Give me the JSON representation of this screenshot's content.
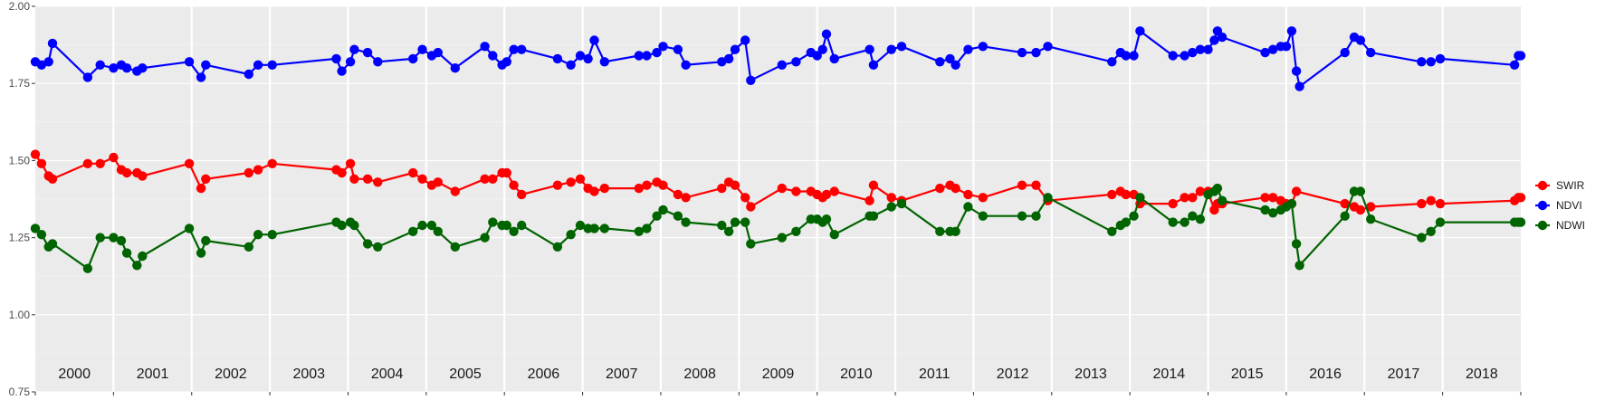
{
  "chart_data": {
    "type": "line",
    "ylim": [
      0.75,
      2.0
    ],
    "xlim": [
      2000.0,
      2019.0
    ],
    "y_ticks": [
      "0.75",
      "1.00",
      "1.25",
      "1.50",
      "1.75",
      "2.00"
    ],
    "year_labels": [
      "2000",
      "2001",
      "2002",
      "2003",
      "2004",
      "2005",
      "2006",
      "2007",
      "2008",
      "2009",
      "2010",
      "2011",
      "2012",
      "2013",
      "2014",
      "2015",
      "2016",
      "2017",
      "2018"
    ],
    "grid": true,
    "legend_position": "right",
    "series": [
      {
        "name": "SWIR",
        "color": "#ff0000",
        "points": [
          [
            2000.0,
            1.52
          ],
          [
            2000.08,
            1.49
          ],
          [
            2000.17,
            1.45
          ],
          [
            2000.22,
            1.44
          ],
          [
            2000.67,
            1.49
          ],
          [
            2000.83,
            1.49
          ],
          [
            2001.0,
            1.51
          ],
          [
            2001.1,
            1.47
          ],
          [
            2001.17,
            1.46
          ],
          [
            2001.3,
            1.46
          ],
          [
            2001.37,
            1.45
          ],
          [
            2001.97,
            1.49
          ],
          [
            2002.12,
            1.41
          ],
          [
            2002.18,
            1.44
          ],
          [
            2002.73,
            1.46
          ],
          [
            2002.85,
            1.47
          ],
          [
            2003.03,
            1.49
          ],
          [
            2003.85,
            1.47
          ],
          [
            2003.92,
            1.46
          ],
          [
            2004.03,
            1.49
          ],
          [
            2004.08,
            1.44
          ],
          [
            2004.25,
            1.44
          ],
          [
            2004.38,
            1.43
          ],
          [
            2004.83,
            1.46
          ],
          [
            2004.95,
            1.44
          ],
          [
            2005.07,
            1.42
          ],
          [
            2005.15,
            1.43
          ],
          [
            2005.37,
            1.4
          ],
          [
            2005.75,
            1.44
          ],
          [
            2005.85,
            1.44
          ],
          [
            2005.97,
            1.46
          ],
          [
            2006.03,
            1.46
          ],
          [
            2006.12,
            1.42
          ],
          [
            2006.22,
            1.39
          ],
          [
            2006.68,
            1.42
          ],
          [
            2006.85,
            1.43
          ],
          [
            2006.97,
            1.44
          ],
          [
            2007.07,
            1.41
          ],
          [
            2007.15,
            1.4
          ],
          [
            2007.28,
            1.41
          ],
          [
            2007.72,
            1.41
          ],
          [
            2007.82,
            1.42
          ],
          [
            2007.95,
            1.43
          ],
          [
            2008.03,
            1.42
          ],
          [
            2008.22,
            1.39
          ],
          [
            2008.32,
            1.38
          ],
          [
            2008.78,
            1.41
          ],
          [
            2008.87,
            1.43
          ],
          [
            2008.95,
            1.42
          ],
          [
            2009.08,
            1.38
          ],
          [
            2009.15,
            1.35
          ],
          [
            2009.55,
            1.41
          ],
          [
            2009.73,
            1.4
          ],
          [
            2009.92,
            1.4
          ],
          [
            2010.0,
            1.39
          ],
          [
            2010.07,
            1.38
          ],
          [
            2010.12,
            1.39
          ],
          [
            2010.22,
            1.4
          ],
          [
            2010.67,
            1.37
          ],
          [
            2010.72,
            1.42
          ],
          [
            2010.95,
            1.38
          ],
          [
            2011.08,
            1.37
          ],
          [
            2011.57,
            1.41
          ],
          [
            2011.7,
            1.42
          ],
          [
            2011.77,
            1.41
          ],
          [
            2011.93,
            1.39
          ],
          [
            2012.12,
            1.38
          ],
          [
            2012.62,
            1.42
          ],
          [
            2012.8,
            1.42
          ],
          [
            2012.95,
            1.37
          ],
          [
            2013.77,
            1.39
          ],
          [
            2013.88,
            1.4
          ],
          [
            2013.95,
            1.39
          ],
          [
            2014.05,
            1.39
          ],
          [
            2014.13,
            1.36
          ],
          [
            2014.55,
            1.36
          ],
          [
            2014.7,
            1.38
          ],
          [
            2014.8,
            1.38
          ],
          [
            2014.9,
            1.4
          ],
          [
            2015.0,
            1.4
          ],
          [
            2015.08,
            1.34
          ],
          [
            2015.12,
            1.36
          ],
          [
            2015.18,
            1.36
          ],
          [
            2015.73,
            1.38
          ],
          [
            2015.83,
            1.38
          ],
          [
            2015.93,
            1.37
          ],
          [
            2016.0,
            1.36
          ],
          [
            2016.07,
            1.36
          ],
          [
            2016.13,
            1.4
          ],
          [
            2016.75,
            1.36
          ],
          [
            2016.87,
            1.35
          ],
          [
            2016.95,
            1.34
          ],
          [
            2017.08,
            1.35
          ],
          [
            2017.73,
            1.36
          ],
          [
            2017.85,
            1.37
          ],
          [
            2017.97,
            1.36
          ],
          [
            2018.92,
            1.37
          ],
          [
            2018.97,
            1.38
          ],
          [
            2019.0,
            1.38
          ]
        ]
      },
      {
        "name": "NDVI",
        "color": "#0000ff",
        "points": [
          [
            2000.0,
            1.82
          ],
          [
            2000.08,
            1.81
          ],
          [
            2000.17,
            1.82
          ],
          [
            2000.22,
            1.88
          ],
          [
            2000.67,
            1.77
          ],
          [
            2000.83,
            1.81
          ],
          [
            2001.0,
            1.8
          ],
          [
            2001.1,
            1.81
          ],
          [
            2001.17,
            1.8
          ],
          [
            2001.3,
            1.79
          ],
          [
            2001.37,
            1.8
          ],
          [
            2001.97,
            1.82
          ],
          [
            2002.12,
            1.77
          ],
          [
            2002.18,
            1.81
          ],
          [
            2002.73,
            1.78
          ],
          [
            2002.85,
            1.81
          ],
          [
            2003.03,
            1.81
          ],
          [
            2003.85,
            1.83
          ],
          [
            2003.92,
            1.79
          ],
          [
            2004.03,
            1.82
          ],
          [
            2004.08,
            1.86
          ],
          [
            2004.25,
            1.85
          ],
          [
            2004.38,
            1.82
          ],
          [
            2004.83,
            1.83
          ],
          [
            2004.95,
            1.86
          ],
          [
            2005.07,
            1.84
          ],
          [
            2005.15,
            1.85
          ],
          [
            2005.37,
            1.8
          ],
          [
            2005.75,
            1.87
          ],
          [
            2005.85,
            1.84
          ],
          [
            2005.97,
            1.81
          ],
          [
            2006.03,
            1.82
          ],
          [
            2006.12,
            1.86
          ],
          [
            2006.22,
            1.86
          ],
          [
            2006.68,
            1.83
          ],
          [
            2006.85,
            1.81
          ],
          [
            2006.97,
            1.84
          ],
          [
            2007.07,
            1.83
          ],
          [
            2007.15,
            1.89
          ],
          [
            2007.28,
            1.82
          ],
          [
            2007.72,
            1.84
          ],
          [
            2007.82,
            1.84
          ],
          [
            2007.95,
            1.85
          ],
          [
            2008.03,
            1.87
          ],
          [
            2008.22,
            1.86
          ],
          [
            2008.32,
            1.81
          ],
          [
            2008.78,
            1.82
          ],
          [
            2008.87,
            1.83
          ],
          [
            2008.95,
            1.86
          ],
          [
            2009.08,
            1.89
          ],
          [
            2009.15,
            1.76
          ],
          [
            2009.55,
            1.81
          ],
          [
            2009.73,
            1.82
          ],
          [
            2009.92,
            1.85
          ],
          [
            2010.0,
            1.84
          ],
          [
            2010.07,
            1.86
          ],
          [
            2010.12,
            1.91
          ],
          [
            2010.22,
            1.83
          ],
          [
            2010.67,
            1.86
          ],
          [
            2010.72,
            1.81
          ],
          [
            2010.95,
            1.86
          ],
          [
            2011.08,
            1.87
          ],
          [
            2011.57,
            1.82
          ],
          [
            2011.7,
            1.83
          ],
          [
            2011.77,
            1.81
          ],
          [
            2011.93,
            1.86
          ],
          [
            2012.12,
            1.87
          ],
          [
            2012.62,
            1.85
          ],
          [
            2012.8,
            1.85
          ],
          [
            2012.95,
            1.87
          ],
          [
            2013.77,
            1.82
          ],
          [
            2013.88,
            1.85
          ],
          [
            2013.95,
            1.84
          ],
          [
            2014.05,
            1.84
          ],
          [
            2014.13,
            1.92
          ],
          [
            2014.55,
            1.84
          ],
          [
            2014.7,
            1.84
          ],
          [
            2014.8,
            1.85
          ],
          [
            2014.9,
            1.86
          ],
          [
            2015.0,
            1.86
          ],
          [
            2015.08,
            1.89
          ],
          [
            2015.12,
            1.92
          ],
          [
            2015.18,
            1.9
          ],
          [
            2015.73,
            1.85
          ],
          [
            2015.83,
            1.86
          ],
          [
            2015.93,
            1.87
          ],
          [
            2016.0,
            1.87
          ],
          [
            2016.07,
            1.92
          ],
          [
            2016.13,
            1.79
          ],
          [
            2016.17,
            1.74
          ],
          [
            2016.75,
            1.85
          ],
          [
            2016.87,
            1.9
          ],
          [
            2016.95,
            1.89
          ],
          [
            2017.08,
            1.85
          ],
          [
            2017.73,
            1.82
          ],
          [
            2017.85,
            1.82
          ],
          [
            2017.97,
            1.83
          ],
          [
            2018.92,
            1.81
          ],
          [
            2018.97,
            1.84
          ],
          [
            2019.0,
            1.84
          ]
        ]
      },
      {
        "name": "NDWI",
        "color": "#006400",
        "points": [
          [
            2000.0,
            1.28
          ],
          [
            2000.08,
            1.26
          ],
          [
            2000.17,
            1.22
          ],
          [
            2000.22,
            1.23
          ],
          [
            2000.67,
            1.15
          ],
          [
            2000.83,
            1.25
          ],
          [
            2001.0,
            1.25
          ],
          [
            2001.1,
            1.24
          ],
          [
            2001.17,
            1.2
          ],
          [
            2001.3,
            1.16
          ],
          [
            2001.37,
            1.19
          ],
          [
            2001.97,
            1.28
          ],
          [
            2002.12,
            1.2
          ],
          [
            2002.18,
            1.24
          ],
          [
            2002.73,
            1.22
          ],
          [
            2002.85,
            1.26
          ],
          [
            2003.03,
            1.26
          ],
          [
            2003.85,
            1.3
          ],
          [
            2003.92,
            1.29
          ],
          [
            2004.03,
            1.3
          ],
          [
            2004.08,
            1.29
          ],
          [
            2004.25,
            1.23
          ],
          [
            2004.38,
            1.22
          ],
          [
            2004.83,
            1.27
          ],
          [
            2004.95,
            1.29
          ],
          [
            2005.07,
            1.29
          ],
          [
            2005.15,
            1.27
          ],
          [
            2005.37,
            1.22
          ],
          [
            2005.75,
            1.25
          ],
          [
            2005.85,
            1.3
          ],
          [
            2005.97,
            1.29
          ],
          [
            2006.03,
            1.29
          ],
          [
            2006.12,
            1.27
          ],
          [
            2006.22,
            1.29
          ],
          [
            2006.68,
            1.22
          ],
          [
            2006.85,
            1.26
          ],
          [
            2006.97,
            1.29
          ],
          [
            2007.07,
            1.28
          ],
          [
            2007.15,
            1.28
          ],
          [
            2007.28,
            1.28
          ],
          [
            2007.72,
            1.27
          ],
          [
            2007.82,
            1.28
          ],
          [
            2007.95,
            1.32
          ],
          [
            2008.03,
            1.34
          ],
          [
            2008.22,
            1.32
          ],
          [
            2008.32,
            1.3
          ],
          [
            2008.78,
            1.29
          ],
          [
            2008.87,
            1.27
          ],
          [
            2008.95,
            1.3
          ],
          [
            2009.08,
            1.3
          ],
          [
            2009.15,
            1.23
          ],
          [
            2009.55,
            1.25
          ],
          [
            2009.73,
            1.27
          ],
          [
            2009.92,
            1.31
          ],
          [
            2010.0,
            1.31
          ],
          [
            2010.07,
            1.3
          ],
          [
            2010.12,
            1.31
          ],
          [
            2010.22,
            1.26
          ],
          [
            2010.67,
            1.32
          ],
          [
            2010.72,
            1.32
          ],
          [
            2010.95,
            1.35
          ],
          [
            2011.08,
            1.36
          ],
          [
            2011.57,
            1.27
          ],
          [
            2011.7,
            1.27
          ],
          [
            2011.77,
            1.27
          ],
          [
            2011.93,
            1.35
          ],
          [
            2012.12,
            1.32
          ],
          [
            2012.62,
            1.32
          ],
          [
            2012.8,
            1.32
          ],
          [
            2012.95,
            1.38
          ],
          [
            2013.77,
            1.27
          ],
          [
            2013.88,
            1.29
          ],
          [
            2013.95,
            1.3
          ],
          [
            2014.05,
            1.32
          ],
          [
            2014.13,
            1.38
          ],
          [
            2014.55,
            1.3
          ],
          [
            2014.7,
            1.3
          ],
          [
            2014.8,
            1.32
          ],
          [
            2014.9,
            1.31
          ],
          [
            2015.0,
            1.39
          ],
          [
            2015.08,
            1.4
          ],
          [
            2015.12,
            1.41
          ],
          [
            2015.18,
            1.37
          ],
          [
            2015.73,
            1.34
          ],
          [
            2015.83,
            1.33
          ],
          [
            2015.93,
            1.34
          ],
          [
            2016.0,
            1.35
          ],
          [
            2016.07,
            1.36
          ],
          [
            2016.13,
            1.23
          ],
          [
            2016.17,
            1.16
          ],
          [
            2016.75,
            1.32
          ],
          [
            2016.87,
            1.4
          ],
          [
            2016.95,
            1.4
          ],
          [
            2017.08,
            1.31
          ],
          [
            2017.73,
            1.25
          ],
          [
            2017.85,
            1.27
          ],
          [
            2017.97,
            1.3
          ],
          [
            2018.92,
            1.3
          ],
          [
            2018.97,
            1.3
          ],
          [
            2019.0,
            1.3
          ]
        ]
      }
    ]
  }
}
